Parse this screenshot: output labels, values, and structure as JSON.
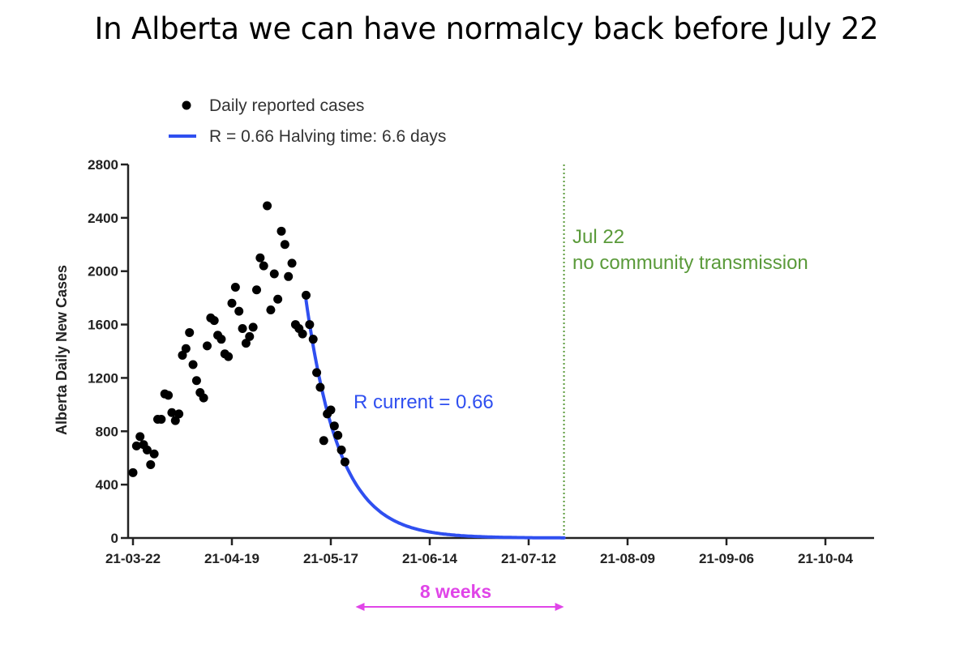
{
  "slide": {
    "title": "In Alberta we can have normalcy back before July 22"
  },
  "colors": {
    "points": "#000000",
    "fit": "#2f4ff0",
    "vline": "#5a9a3a",
    "arrow": "#e045e8",
    "axis": "#222222"
  },
  "chart_data": {
    "type": "scatter",
    "ylabel": "Alberta Daily New Cases",
    "ylim": [
      0,
      2800
    ],
    "yticks": [
      0,
      400,
      800,
      1200,
      1600,
      2000,
      2400,
      2800
    ],
    "xlim": [
      "2021-03-22",
      "2021-10-16"
    ],
    "xtick_dates": [
      "2021-03-22",
      "2021-04-19",
      "2021-05-17",
      "2021-06-14",
      "2021-07-12",
      "2021-08-09",
      "2021-09-06",
      "2021-10-04"
    ],
    "xtick_labels": [
      "21-03-22",
      "21-04-19",
      "21-05-17",
      "21-06-14",
      "21-07-12",
      "21-08-09",
      "21-09-06",
      "21-10-04"
    ],
    "legend": {
      "position": "top-left",
      "entries": [
        "Daily reported cases",
        "R = 0.66  Halving time: 6.6 days"
      ]
    },
    "series": [
      {
        "name": "Daily reported cases",
        "kind": "scatter",
        "points": [
          [
            "2021-03-22",
            490
          ],
          [
            "2021-03-23",
            690
          ],
          [
            "2021-03-24",
            760
          ],
          [
            "2021-03-25",
            700
          ],
          [
            "2021-03-26",
            660
          ],
          [
            "2021-03-27",
            550
          ],
          [
            "2021-03-28",
            630
          ],
          [
            "2021-03-29",
            890
          ],
          [
            "2021-03-30",
            890
          ],
          [
            "2021-03-31",
            1080
          ],
          [
            "2021-04-01",
            1070
          ],
          [
            "2021-04-02",
            940
          ],
          [
            "2021-04-03",
            880
          ],
          [
            "2021-04-04",
            930
          ],
          [
            "2021-04-05",
            1370
          ],
          [
            "2021-04-06",
            1420
          ],
          [
            "2021-04-07",
            1540
          ],
          [
            "2021-04-08",
            1300
          ],
          [
            "2021-04-09",
            1180
          ],
          [
            "2021-04-10",
            1090
          ],
          [
            "2021-04-11",
            1050
          ],
          [
            "2021-04-12",
            1440
          ],
          [
            "2021-04-13",
            1650
          ],
          [
            "2021-04-14",
            1630
          ],
          [
            "2021-04-15",
            1520
          ],
          [
            "2021-04-16",
            1490
          ],
          [
            "2021-04-17",
            1380
          ],
          [
            "2021-04-18",
            1360
          ],
          [
            "2021-04-19",
            1760
          ],
          [
            "2021-04-20",
            1880
          ],
          [
            "2021-04-21",
            1700
          ],
          [
            "2021-04-22",
            1570
          ],
          [
            "2021-04-23",
            1460
          ],
          [
            "2021-04-24",
            1510
          ],
          [
            "2021-04-25",
            1580
          ],
          [
            "2021-04-26",
            1860
          ],
          [
            "2021-04-27",
            2100
          ],
          [
            "2021-04-28",
            2040
          ],
          [
            "2021-04-29",
            2490
          ],
          [
            "2021-04-30",
            1710
          ],
          [
            "2021-05-01",
            1980
          ],
          [
            "2021-05-02",
            1790
          ],
          [
            "2021-05-03",
            2300
          ],
          [
            "2021-05-04",
            2200
          ],
          [
            "2021-05-05",
            1960
          ],
          [
            "2021-05-06",
            2060
          ],
          [
            "2021-05-07",
            1600
          ],
          [
            "2021-05-08",
            1570
          ],
          [
            "2021-05-09",
            1530
          ],
          [
            "2021-05-10",
            1820
          ],
          [
            "2021-05-11",
            1600
          ],
          [
            "2021-05-12",
            1490
          ],
          [
            "2021-05-13",
            1240
          ],
          [
            "2021-05-14",
            1130
          ],
          [
            "2021-05-15",
            730
          ],
          [
            "2021-05-16",
            930
          ],
          [
            "2021-05-17",
            960
          ],
          [
            "2021-05-18",
            840
          ],
          [
            "2021-05-19",
            770
          ],
          [
            "2021-05-20",
            660
          ],
          [
            "2021-05-21",
            570
          ]
        ]
      },
      {
        "name": "R = 0.66  Halving time: 6.6 days",
        "kind": "line",
        "model": "exponential decay",
        "start": [
          "2021-05-10",
          1780
        ],
        "halving_time_days": 6.6,
        "end_date": "2021-07-22"
      }
    ],
    "annotations": [
      {
        "id": "r-current",
        "text": "R current = 0.66",
        "color": "#2f4ff0"
      },
      {
        "id": "jul22",
        "date": "2021-07-22",
        "line_style": "dotted",
        "lines": [
          "Jul 22",
          "no community transmission"
        ],
        "color": "#5a9a3a"
      },
      {
        "id": "weeks",
        "text": "8 weeks",
        "from": "2021-05-24",
        "to": "2021-07-22",
        "color": "#e045e8"
      }
    ]
  }
}
